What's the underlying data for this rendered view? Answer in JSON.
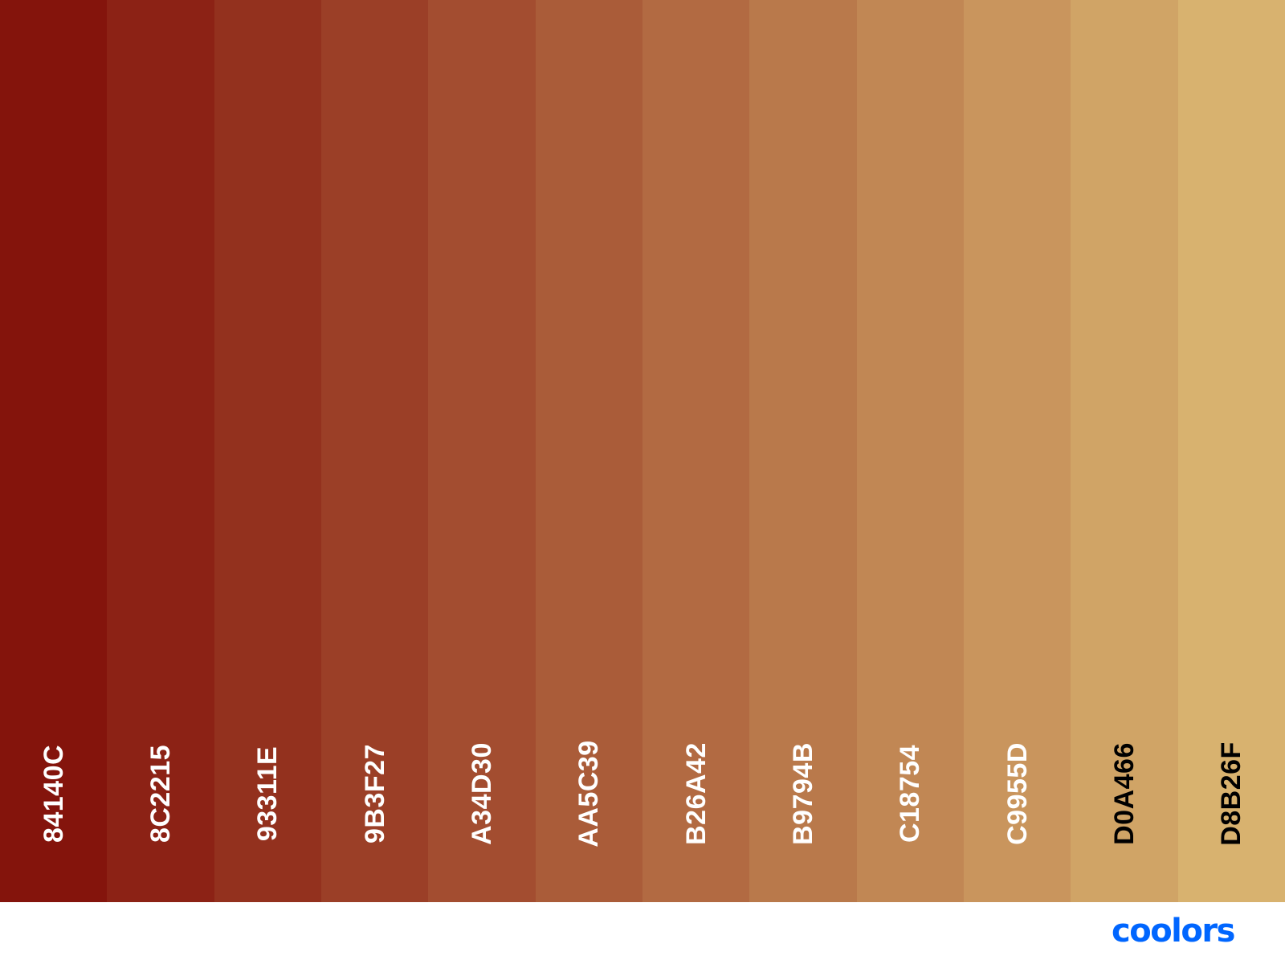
{
  "palette": {
    "swatches": [
      {
        "hex": "84140C",
        "color": "#84140C",
        "text_color": "#ffffff"
      },
      {
        "hex": "8C2215",
        "color": "#8C2215",
        "text_color": "#ffffff"
      },
      {
        "hex": "93311E",
        "color": "#93311E",
        "text_color": "#ffffff"
      },
      {
        "hex": "9B3F27",
        "color": "#9B3F27",
        "text_color": "#ffffff"
      },
      {
        "hex": "A34D30",
        "color": "#A34D30",
        "text_color": "#ffffff"
      },
      {
        "hex": "AA5C39",
        "color": "#AA5C39",
        "text_color": "#ffffff"
      },
      {
        "hex": "B26A42",
        "color": "#B26A42",
        "text_color": "#ffffff"
      },
      {
        "hex": "B9794B",
        "color": "#B9794B",
        "text_color": "#ffffff"
      },
      {
        "hex": "C18754",
        "color": "#C18754",
        "text_color": "#ffffff"
      },
      {
        "hex": "C9955D",
        "color": "#C9955D",
        "text_color": "#ffffff"
      },
      {
        "hex": "D0A466",
        "color": "#D0A466",
        "text_color": "#000000"
      },
      {
        "hex": "D8B26F",
        "color": "#D8B26F",
        "text_color": "#000000"
      }
    ]
  },
  "footer": {
    "logo_text": "coolors",
    "logo_color": "#0066FF"
  }
}
